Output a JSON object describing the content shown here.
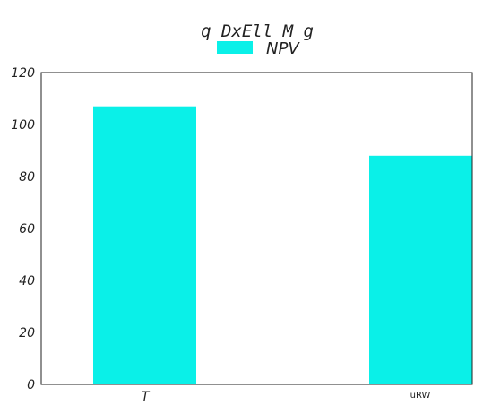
{
  "chart_data": {
    "type": "bar",
    "title": "q DxEll M g",
    "categories": [
      "T",
      "uRW"
    ],
    "series": [
      {
        "name": "NPV",
        "values": [
          107,
          88
        ],
        "color": "#0af0e8"
      }
    ],
    "ylim": [
      0,
      120
    ],
    "yticks": [
      0,
      20,
      40,
      60,
      80,
      100,
      120
    ],
    "xlabel": "",
    "ylabel": "",
    "grid": false,
    "legend": "top-center"
  }
}
